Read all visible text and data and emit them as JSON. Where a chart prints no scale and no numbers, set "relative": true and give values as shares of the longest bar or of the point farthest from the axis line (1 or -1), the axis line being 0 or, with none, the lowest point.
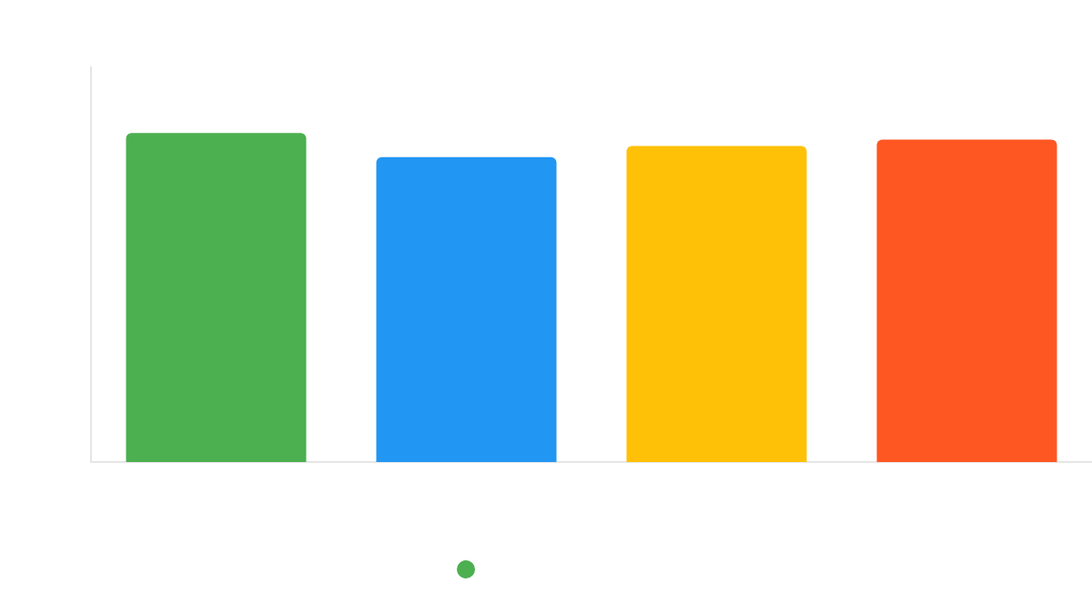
{
  "chart_data": {
    "type": "bar",
    "relative": true,
    "categories": [
      null,
      null,
      null,
      null
    ],
    "values": [
      1,
      0.927,
      0.961,
      0.98
    ],
    "colors": [
      "#4caf50",
      "#2196f3",
      "#ffc107",
      "#ff5722"
    ]
  }
}
